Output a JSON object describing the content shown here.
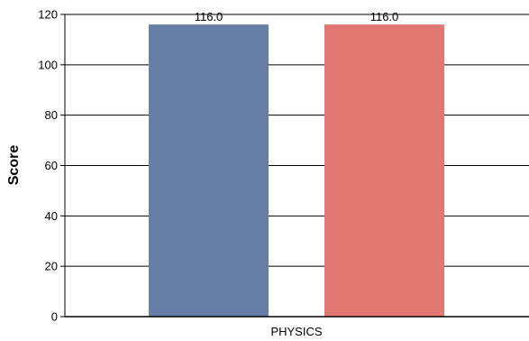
{
  "chart_data": {
    "type": "bar",
    "categories": [
      "PHYSICS"
    ],
    "series": [
      {
        "values": [
          116.0
        ],
        "color": "#657fa6"
      },
      {
        "values": [
          116.0
        ],
        "color": "#e07772"
      }
    ],
    "value_labels": [
      "116.0",
      "116.0"
    ],
    "title": "",
    "xlabel": "",
    "ylabel": "Score",
    "ylim": [
      0,
      120
    ],
    "yticks": [
      0,
      20,
      40,
      60,
      80,
      100,
      120
    ],
    "grid": "horizontal",
    "legend": "none"
  }
}
